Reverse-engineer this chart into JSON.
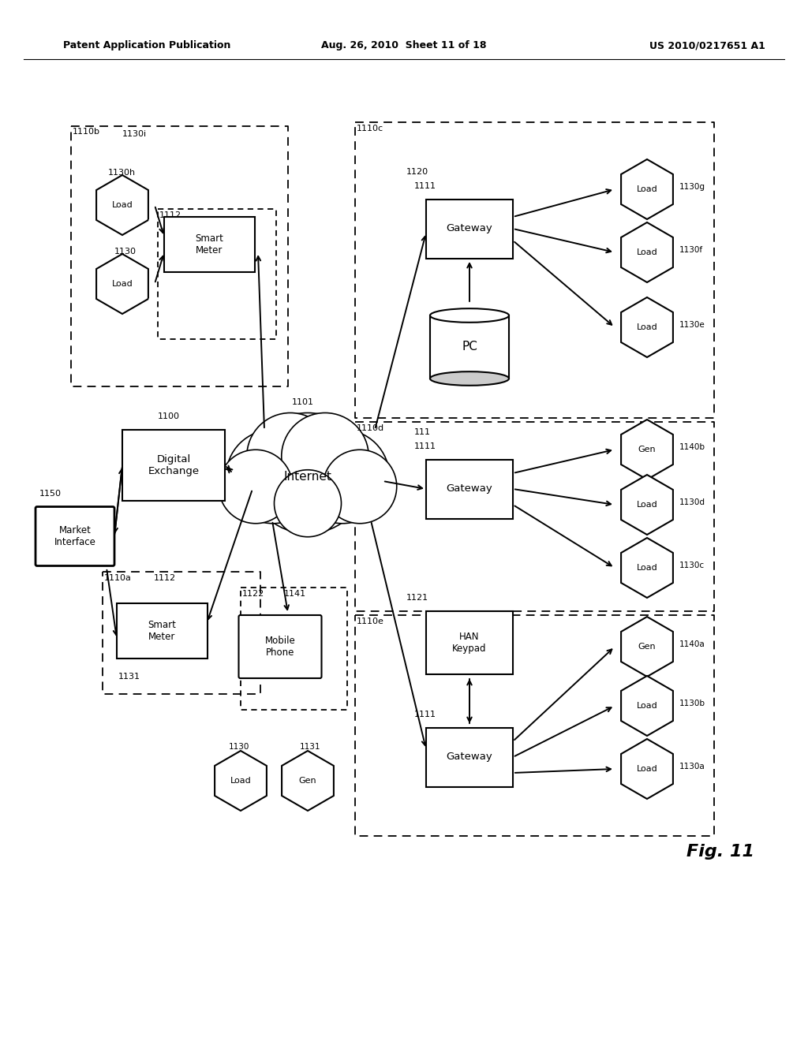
{
  "title_left": "Patent Application Publication",
  "title_center": "Aug. 26, 2010  Sheet 11 of 18",
  "title_right": "US 2010/0217651 A1",
  "fig_label": "Fig. 11",
  "background": "#ffffff"
}
